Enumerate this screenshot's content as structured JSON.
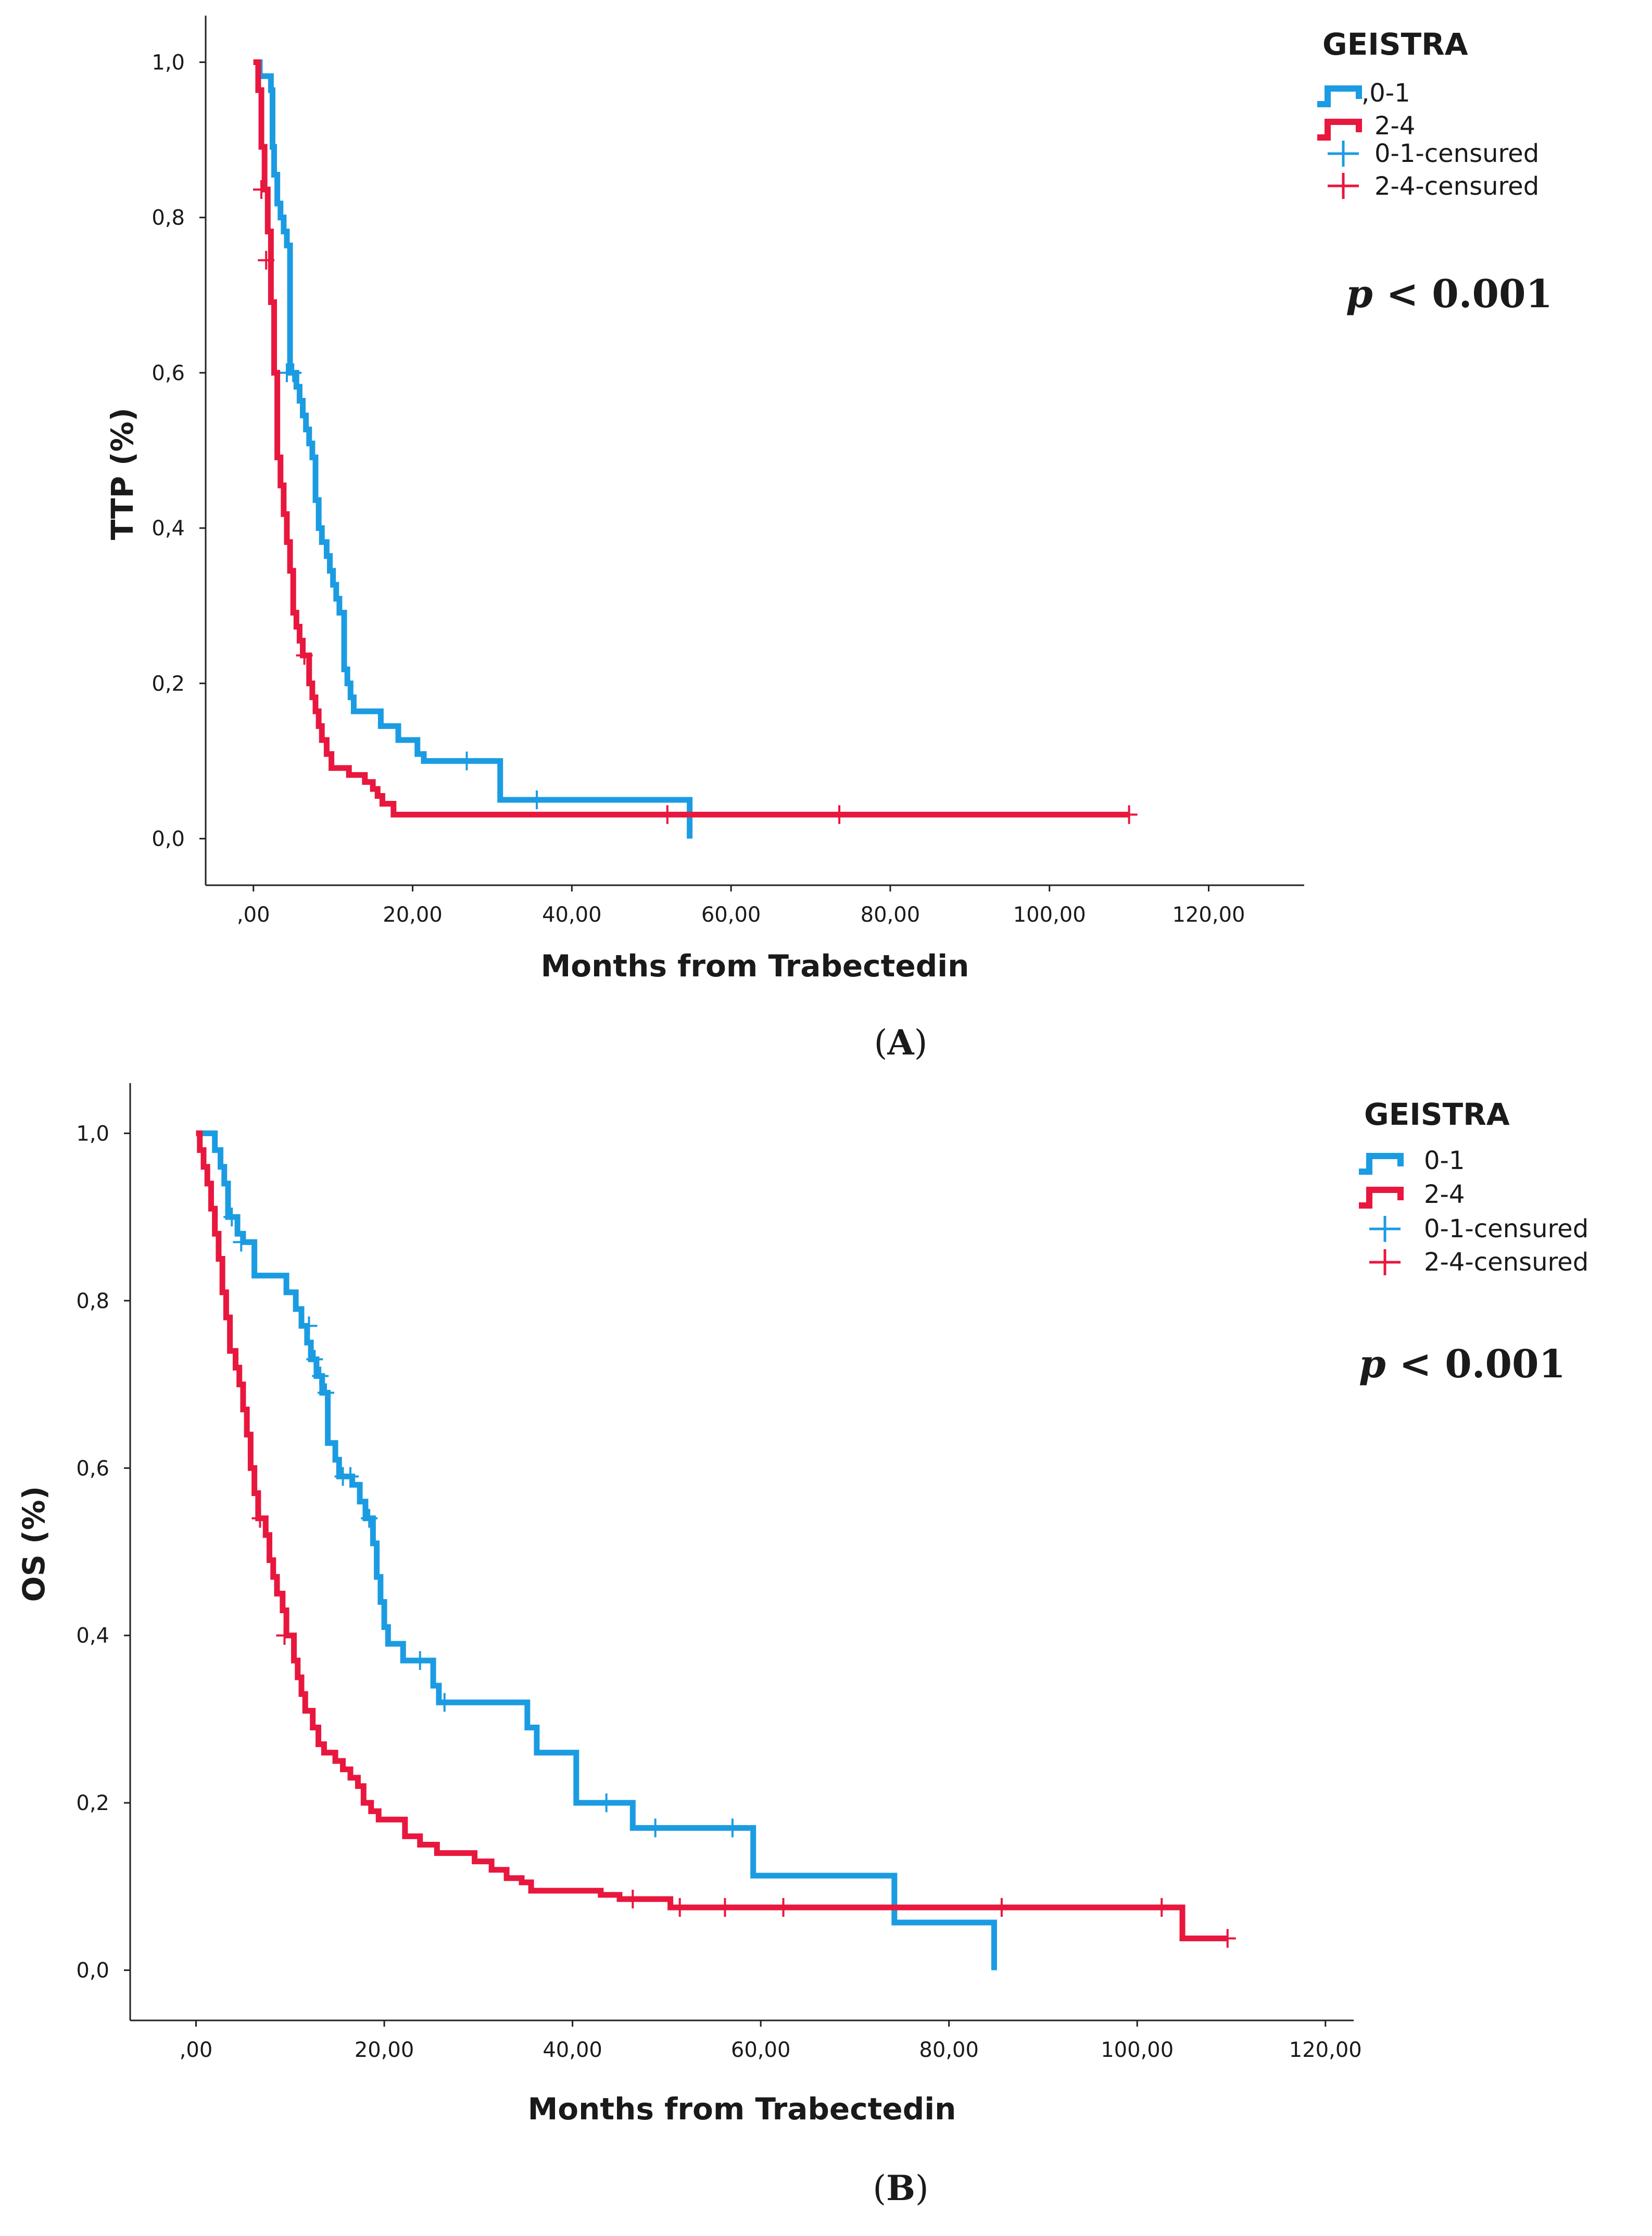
{
  "colors": {
    "group_0_1": "#1b9ce2",
    "group_2_4": "#e8173e",
    "axis": "#222222"
  },
  "chart_data": [
    {
      "type": "line",
      "subtype": "kaplan-meier",
      "panel_label": "A",
      "xlabel": "Months from Trabectedin",
      "ylabel": "TTP (%)",
      "xlim": [
        -6,
        132
      ],
      "ylim": [
        -0.06,
        1.06
      ],
      "x_ticks": [
        0,
        20,
        40,
        60,
        80,
        100,
        120
      ],
      "x_tick_labels": [
        ",00",
        "20,00",
        "40,00",
        "60,00",
        "80,00",
        "100,00",
        "120,00"
      ],
      "y_ticks": [
        0,
        0.2,
        0.4,
        0.6,
        0.8,
        1.0
      ],
      "y_tick_labels": [
        "0,0",
        "0,2",
        "0,4",
        "0,6",
        "0,8",
        "1,0"
      ],
      "legend": {
        "title": "GEISTRA",
        "position": "top-right",
        "entries": [
          ",0-1",
          "2-4",
          "0-1-censured",
          "2-4-censured"
        ]
      },
      "p_value": {
        "prefix": "p",
        "text": " < 0.001"
      },
      "series": [
        {
          "name": "0-1",
          "color_key": "group_0_1",
          "steps": [
            [
              0,
              1.0
            ],
            [
              0.8,
              0.982
            ],
            [
              2.2,
              0.964
            ],
            [
              2.4,
              0.891
            ],
            [
              2.6,
              0.855
            ],
            [
              3.0,
              0.818
            ],
            [
              3.4,
              0.8
            ],
            [
              3.8,
              0.782
            ],
            [
              4.2,
              0.764
            ],
            [
              4.6,
              0.6
            ],
            [
              5.4,
              0.582
            ],
            [
              5.8,
              0.564
            ],
            [
              6.2,
              0.545
            ],
            [
              6.6,
              0.527
            ],
            [
              7.0,
              0.509
            ],
            [
              7.4,
              0.491
            ],
            [
              7.8,
              0.436
            ],
            [
              8.2,
              0.4
            ],
            [
              8.6,
              0.382
            ],
            [
              9.2,
              0.364
            ],
            [
              9.6,
              0.345
            ],
            [
              10.0,
              0.327
            ],
            [
              10.4,
              0.309
            ],
            [
              10.8,
              0.291
            ],
            [
              11.4,
              0.218
            ],
            [
              11.8,
              0.2
            ],
            [
              12.2,
              0.182
            ],
            [
              12.6,
              0.164
            ],
            [
              16.0,
              0.145
            ],
            [
              18.2,
              0.127
            ],
            [
              20.6,
              0.109
            ],
            [
              21.4,
              0.1
            ],
            [
              31.0,
              0.05
            ],
            [
              54.8,
              0.0
            ]
          ],
          "end_x": 54.8,
          "censored": [
            [
              4.2,
              0.6
            ],
            [
              5.0,
              0.6
            ],
            [
              26.8,
              0.1
            ],
            [
              35.6,
              0.05
            ]
          ]
        },
        {
          "name": "2-4",
          "color_key": "group_2_4",
          "steps": [
            [
              0,
              1.0
            ],
            [
              0.6,
              0.964
            ],
            [
              1.0,
              0.891
            ],
            [
              1.4,
              0.836
            ],
            [
              1.8,
              0.782
            ],
            [
              2.2,
              0.691
            ],
            [
              2.6,
              0.6
            ],
            [
              3.0,
              0.491
            ],
            [
              3.4,
              0.455
            ],
            [
              3.8,
              0.418
            ],
            [
              4.2,
              0.382
            ],
            [
              4.6,
              0.345
            ],
            [
              5.0,
              0.291
            ],
            [
              5.4,
              0.273
            ],
            [
              5.8,
              0.255
            ],
            [
              6.2,
              0.236
            ],
            [
              7.0,
              0.2
            ],
            [
              7.4,
              0.182
            ],
            [
              7.8,
              0.164
            ],
            [
              8.2,
              0.145
            ],
            [
              8.6,
              0.127
            ],
            [
              9.2,
              0.109
            ],
            [
              9.8,
              0.091
            ],
            [
              12.0,
              0.082
            ],
            [
              14.0,
              0.073
            ],
            [
              15.0,
              0.064
            ],
            [
              15.6,
              0.055
            ],
            [
              16.2,
              0.045
            ],
            [
              17.6,
              0.031
            ]
          ],
          "end_x": 110,
          "censored": [
            [
              1.0,
              0.836
            ],
            [
              1.6,
              0.745
            ],
            [
              6.4,
              0.236
            ],
            [
              52.0,
              0.031
            ],
            [
              73.6,
              0.031
            ],
            [
              110,
              0.031
            ]
          ]
        }
      ]
    },
    {
      "type": "line",
      "subtype": "kaplan-meier",
      "panel_label": "B",
      "xlabel": "Months from Trabectedin",
      "ylabel": "OS (%)",
      "xlim": [
        -7,
        123
      ],
      "ylim": [
        -0.06,
        1.06
      ],
      "x_ticks": [
        0,
        20,
        40,
        60,
        80,
        100,
        120
      ],
      "x_tick_labels": [
        ",00",
        "20,00",
        "40,00",
        "60,00",
        "80,00",
        "100,00",
        "120,00"
      ],
      "y_ticks": [
        0,
        0.2,
        0.4,
        0.6,
        0.8,
        1.0
      ],
      "y_tick_labels": [
        "0,0",
        "0,2",
        "0,4",
        "0,6",
        "0,8",
        "1,0"
      ],
      "legend": {
        "title": "GEISTRA",
        "position": "top-right",
        "entries": [
          "0-1",
          "2-4",
          "0-1-censured",
          "2-4-censured"
        ]
      },
      "p_value": {
        "prefix": "p",
        "text": " < 0.001"
      },
      "series": [
        {
          "name": "0-1",
          "color_key": "group_0_1",
          "steps": [
            [
              0,
              1.0
            ],
            [
              2.0,
              0.98
            ],
            [
              2.6,
              0.96
            ],
            [
              3.0,
              0.94
            ],
            [
              3.4,
              0.9
            ],
            [
              4.4,
              0.88
            ],
            [
              5.0,
              0.87
            ],
            [
              6.2,
              0.83
            ],
            [
              9.6,
              0.81
            ],
            [
              10.6,
              0.79
            ],
            [
              11.2,
              0.77
            ],
            [
              11.8,
              0.75
            ],
            [
              12.2,
              0.73
            ],
            [
              12.8,
              0.71
            ],
            [
              13.4,
              0.69
            ],
            [
              14.0,
              0.63
            ],
            [
              14.8,
              0.61
            ],
            [
              15.2,
              0.59
            ],
            [
              16.6,
              0.58
            ],
            [
              17.4,
              0.56
            ],
            [
              18.0,
              0.54
            ],
            [
              18.8,
              0.51
            ],
            [
              19.2,
              0.47
            ],
            [
              19.6,
              0.44
            ],
            [
              20.0,
              0.41
            ],
            [
              20.4,
              0.39
            ],
            [
              22.0,
              0.37
            ],
            [
              25.2,
              0.34
            ],
            [
              25.8,
              0.32
            ],
            [
              35.2,
              0.29
            ],
            [
              36.2,
              0.26
            ],
            [
              40.4,
              0.2
            ],
            [
              46.4,
              0.17
            ],
            [
              59.2,
              0.113
            ],
            [
              74.2,
              0.057
            ],
            [
              84.8,
              0.0
            ]
          ],
          "end_x": 84.8,
          "censored": [
            [
              3.8,
              0.9
            ],
            [
              4.8,
              0.87
            ],
            [
              12.0,
              0.77
            ],
            [
              12.6,
              0.73
            ],
            [
              13.2,
              0.71
            ],
            [
              13.8,
              0.69
            ],
            [
              15.6,
              0.59
            ],
            [
              16.4,
              0.59
            ],
            [
              18.4,
              0.54
            ],
            [
              23.8,
              0.37
            ],
            [
              26.4,
              0.32
            ],
            [
              43.6,
              0.2
            ],
            [
              48.8,
              0.17
            ],
            [
              57.0,
              0.17
            ]
          ]
        },
        {
          "name": "2-4",
          "color_key": "group_2_4",
          "steps": [
            [
              0,
              1.0
            ],
            [
              0.4,
              0.98
            ],
            [
              0.8,
              0.96
            ],
            [
              1.2,
              0.94
            ],
            [
              1.6,
              0.91
            ],
            [
              2.0,
              0.88
            ],
            [
              2.4,
              0.85
            ],
            [
              2.8,
              0.81
            ],
            [
              3.2,
              0.78
            ],
            [
              3.6,
              0.74
            ],
            [
              4.2,
              0.72
            ],
            [
              4.6,
              0.7
            ],
            [
              5.0,
              0.67
            ],
            [
              5.4,
              0.64
            ],
            [
              5.8,
              0.6
            ],
            [
              6.2,
              0.57
            ],
            [
              6.6,
              0.54
            ],
            [
              7.4,
              0.52
            ],
            [
              7.8,
              0.49
            ],
            [
              8.2,
              0.47
            ],
            [
              8.6,
              0.45
            ],
            [
              9.2,
              0.43
            ],
            [
              9.6,
              0.4
            ],
            [
              10.4,
              0.37
            ],
            [
              10.8,
              0.35
            ],
            [
              11.2,
              0.33
            ],
            [
              11.6,
              0.31
            ],
            [
              12.4,
              0.29
            ],
            [
              13.0,
              0.27
            ],
            [
              13.6,
              0.26
            ],
            [
              14.8,
              0.25
            ],
            [
              15.6,
              0.24
            ],
            [
              16.4,
              0.23
            ],
            [
              17.2,
              0.22
            ],
            [
              17.8,
              0.2
            ],
            [
              18.6,
              0.19
            ],
            [
              19.4,
              0.18
            ],
            [
              22.2,
              0.16
            ],
            [
              23.8,
              0.15
            ],
            [
              25.6,
              0.14
            ],
            [
              29.6,
              0.13
            ],
            [
              31.4,
              0.12
            ],
            [
              33.0,
              0.11
            ],
            [
              34.6,
              0.105
            ],
            [
              35.6,
              0.095
            ],
            [
              43.0,
              0.09
            ],
            [
              45.0,
              0.085
            ],
            [
              50.4,
              0.075
            ],
            [
              104.8,
              0.038
            ]
          ],
          "end_x": 109.6,
          "censored": [
            [
              6.8,
              0.54
            ],
            [
              9.4,
              0.4
            ],
            [
              46.4,
              0.085
            ],
            [
              51.4,
              0.075
            ],
            [
              56.2,
              0.075
            ],
            [
              62.4,
              0.075
            ],
            [
              85.6,
              0.075
            ],
            [
              102.6,
              0.075
            ],
            [
              109.6,
              0.038
            ]
          ]
        }
      ]
    }
  ]
}
